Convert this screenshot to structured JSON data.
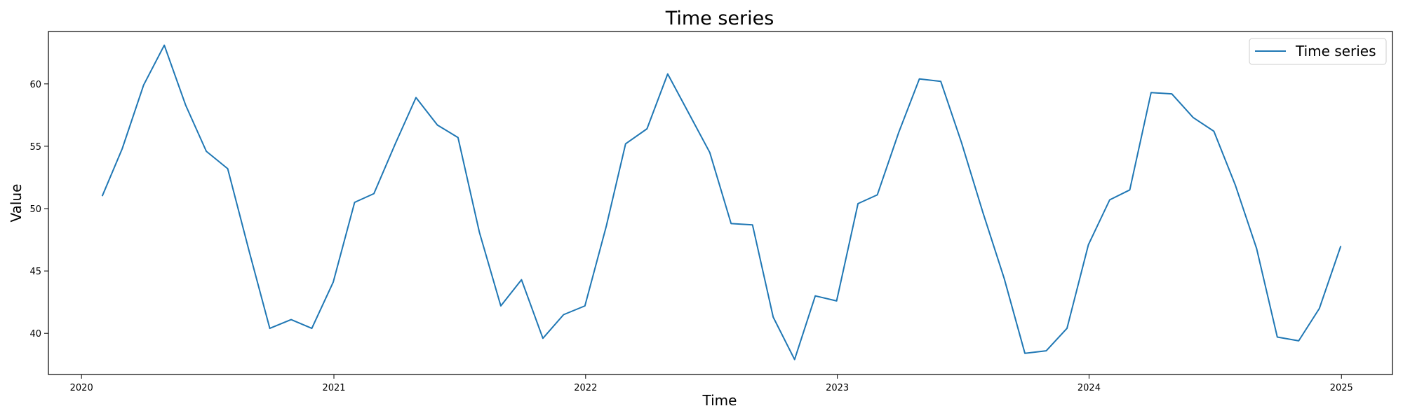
{
  "chart_data": {
    "type": "line",
    "title": "Time series",
    "xlabel": "Time",
    "ylabel": "Value",
    "x_ticks": [
      "2020",
      "2021",
      "2022",
      "2023",
      "2024",
      "2025"
    ],
    "y_ticks": [
      40,
      45,
      50,
      55,
      60
    ],
    "xlim": [
      "2019-11-14",
      "2025-03-16"
    ],
    "ylim": [
      36.7,
      64.2
    ],
    "grid": false,
    "legend": {
      "position": "top-right",
      "entries": [
        "Time series"
      ]
    },
    "colors": {
      "series": "#1f77b4"
    },
    "series": [
      {
        "name": "Time series",
        "x": [
          "2020-01-31",
          "2020-02-29",
          "2020-03-31",
          "2020-04-30",
          "2020-05-31",
          "2020-06-30",
          "2020-07-31",
          "2020-08-31",
          "2020-09-30",
          "2020-10-31",
          "2020-11-30",
          "2020-12-31",
          "2021-01-31",
          "2021-02-28",
          "2021-03-31",
          "2021-04-30",
          "2021-05-31",
          "2021-06-30",
          "2021-07-31",
          "2021-08-31",
          "2021-09-30",
          "2021-10-31",
          "2021-11-30",
          "2021-12-31",
          "2022-01-31",
          "2022-02-28",
          "2022-03-31",
          "2022-04-30",
          "2022-05-31",
          "2022-06-30",
          "2022-07-31",
          "2022-08-31",
          "2022-09-30",
          "2022-10-31",
          "2022-11-30",
          "2022-12-31",
          "2023-01-31",
          "2023-02-28",
          "2023-03-31",
          "2023-04-30",
          "2023-05-31",
          "2023-06-30",
          "2023-07-31",
          "2023-08-31",
          "2023-09-30",
          "2023-10-31",
          "2023-11-30",
          "2023-12-31",
          "2024-01-31",
          "2024-02-29",
          "2024-03-31",
          "2024-04-30",
          "2024-05-31",
          "2024-06-30",
          "2024-07-31",
          "2024-08-31",
          "2024-09-30",
          "2024-10-31",
          "2024-11-30",
          "2024-12-31"
        ],
        "values": [
          51.0,
          54.8,
          59.9,
          63.1,
          58.3,
          54.6,
          53.2,
          46.6,
          40.4,
          41.1,
          40.4,
          44.1,
          50.5,
          51.2,
          55.2,
          58.9,
          56.7,
          55.7,
          48.1,
          42.2,
          44.3,
          39.6,
          41.5,
          42.2,
          48.6,
          55.2,
          56.4,
          60.8,
          57.6,
          54.5,
          48.8,
          48.7,
          41.3,
          37.9,
          43.0,
          42.6,
          50.4,
          51.1,
          56.1,
          60.4,
          60.2,
          55.3,
          49.7,
          44.4,
          38.4,
          38.6,
          40.4,
          47.1,
          50.7,
          51.5,
          59.3,
          59.2,
          57.3,
          56.2,
          51.9,
          46.8,
          39.7,
          39.4,
          42.0,
          47.0
        ]
      }
    ]
  }
}
